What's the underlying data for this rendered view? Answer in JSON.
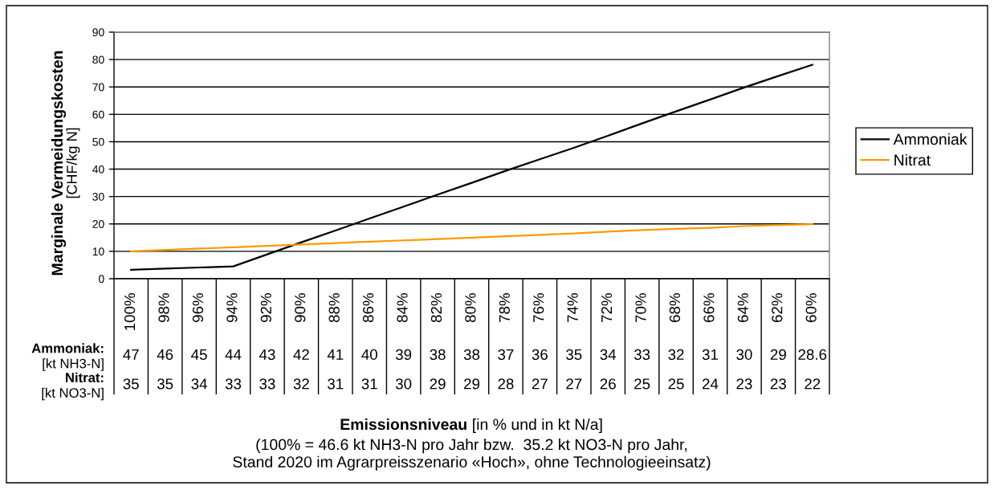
{
  "chart_data": {
    "type": "line",
    "ylabel": "Marginale Vermeidungskosten\n[CHF/kg N]",
    "categories": [
      "100%",
      "98%",
      "96%",
      "94%",
      "92%",
      "90%",
      "88%",
      "86%",
      "84%",
      "82%",
      "80%",
      "78%",
      "76%",
      "74%",
      "72%",
      "70%",
      "68%",
      "66%",
      "64%",
      "62%",
      "60%"
    ],
    "series": [
      {
        "name": "Ammoniak",
        "color": "#000000",
        "values": [
          3.3,
          3.7,
          4.1,
          4.5,
          8.9,
          13.3,
          17.6,
          22.0,
          26.3,
          30.7,
          35.0,
          39.4,
          43.6,
          47.8,
          52.2,
          56.7,
          61.1,
          65.4,
          69.8,
          74.0,
          78.1
        ]
      },
      {
        "name": "Nitrat",
        "color": "#ff9900",
        "values": [
          10.0,
          10.5,
          11.0,
          11.5,
          12.0,
          12.5,
          13.0,
          13.5,
          14.0,
          14.5,
          15.0,
          15.5,
          16.0,
          16.5,
          17.2,
          17.8,
          18.2,
          18.6,
          19.2,
          19.6,
          19.9
        ]
      }
    ],
    "ylim": [
      0,
      90
    ],
    "yticks": [
      0,
      10,
      20,
      30,
      40,
      50,
      60,
      70,
      80,
      90
    ],
    "grid": "y",
    "legend": "right",
    "line_style": "solid",
    "annotations": [
      "Emissionsniveau [in % und in kt N/a]",
      "(100% = 46.6 kt NH3-N pro Jahr bzw.  35.2 kt NO3-N pro Jahr,\nStand 2020 im Agrarpreisszenario «Hoch», ohne Technologieeinsatz)",
      "Ammoniak:",
      "[kt NH3-N]",
      "47",
      "46",
      "45",
      "44",
      "43",
      "42",
      "41",
      "40",
      "39",
      "38",
      "38",
      "37",
      "36",
      "35",
      "34",
      "33",
      "32",
      "31",
      "30",
      "29",
      "28.6",
      "Nitrat:",
      "[kt NO3-N]",
      "35",
      "35",
      "34",
      "33",
      "33",
      "32",
      "31",
      "31",
      "30",
      "29",
      "29",
      "28",
      "27",
      "27",
      "26",
      "25",
      "25",
      "24",
      "23",
      "23",
      "22"
    ]
  }
}
